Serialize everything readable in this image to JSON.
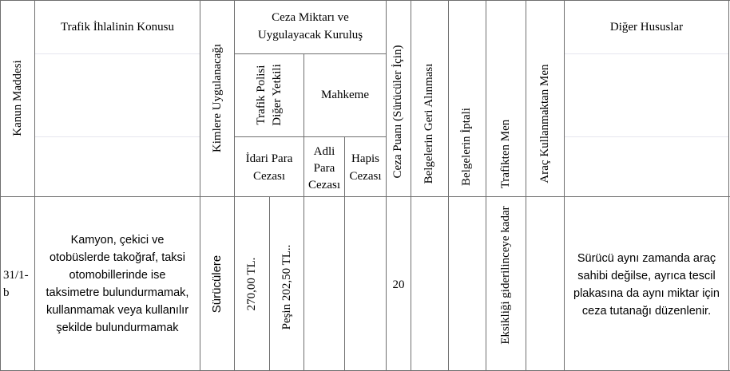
{
  "headers": {
    "kanun_maddesi": "Kanun Maddesi",
    "ihlal_konusu": "Trafik İhlalinin Konusu",
    "kimlere": "Kimlere Uygulanacağı",
    "ceza_miktari_line1": "Ceza Miktarı ve",
    "ceza_miktari_line2": "Uygulayacak Kuruluş",
    "trafik_polisi_line1": "Trafik Polisi",
    "trafik_polisi_line2": "Diğer Yetkili",
    "mahkeme": "Mahkeme",
    "idari_line1": "İdari Para",
    "idari_line2": "Cezası",
    "adli_line1": "Adli",
    "adli_line2": "Para",
    "adli_line3": "Cezası",
    "hapis_line1": "Hapis",
    "hapis_line2": "Cezası",
    "ceza_puani": "Ceza Puanı (Sürücüler İçin)",
    "belge_geri": "Belgelerin Geri Alınması",
    "belge_iptal": "Belgelerin İptali",
    "trafikten_men": "Trafikten Men",
    "arac_kullanmaktan_men": "Araç Kullanmaktan Men",
    "diger_hususlar": "Diğer Hususlar"
  },
  "row": {
    "madde_line1": "31/1-",
    "madde_line2": "b",
    "konu": [
      "Kamyon, çekici ve",
      "otobüslerde takoğraf, taksi",
      "otomobillerinde ise",
      "taksimetre bulundurmamak,",
      "kullanmamak veya kullanılır",
      "şekilde bulundurmamak"
    ],
    "kimlere": "Sürücülere",
    "idari_ceza": "270,00 TL.",
    "pesin": "Peşin 202,50 TL..",
    "ceza_puani": "20",
    "trafikten_men": "Eksikliği giderilinceye kadar",
    "diger": [
      "Sürücü aynı zamanda araç",
      "sahibi değilse, ayrıca tescil",
      "plakasına da aynı miktar için",
      "ceza tutanağı düzenlenir."
    ]
  }
}
